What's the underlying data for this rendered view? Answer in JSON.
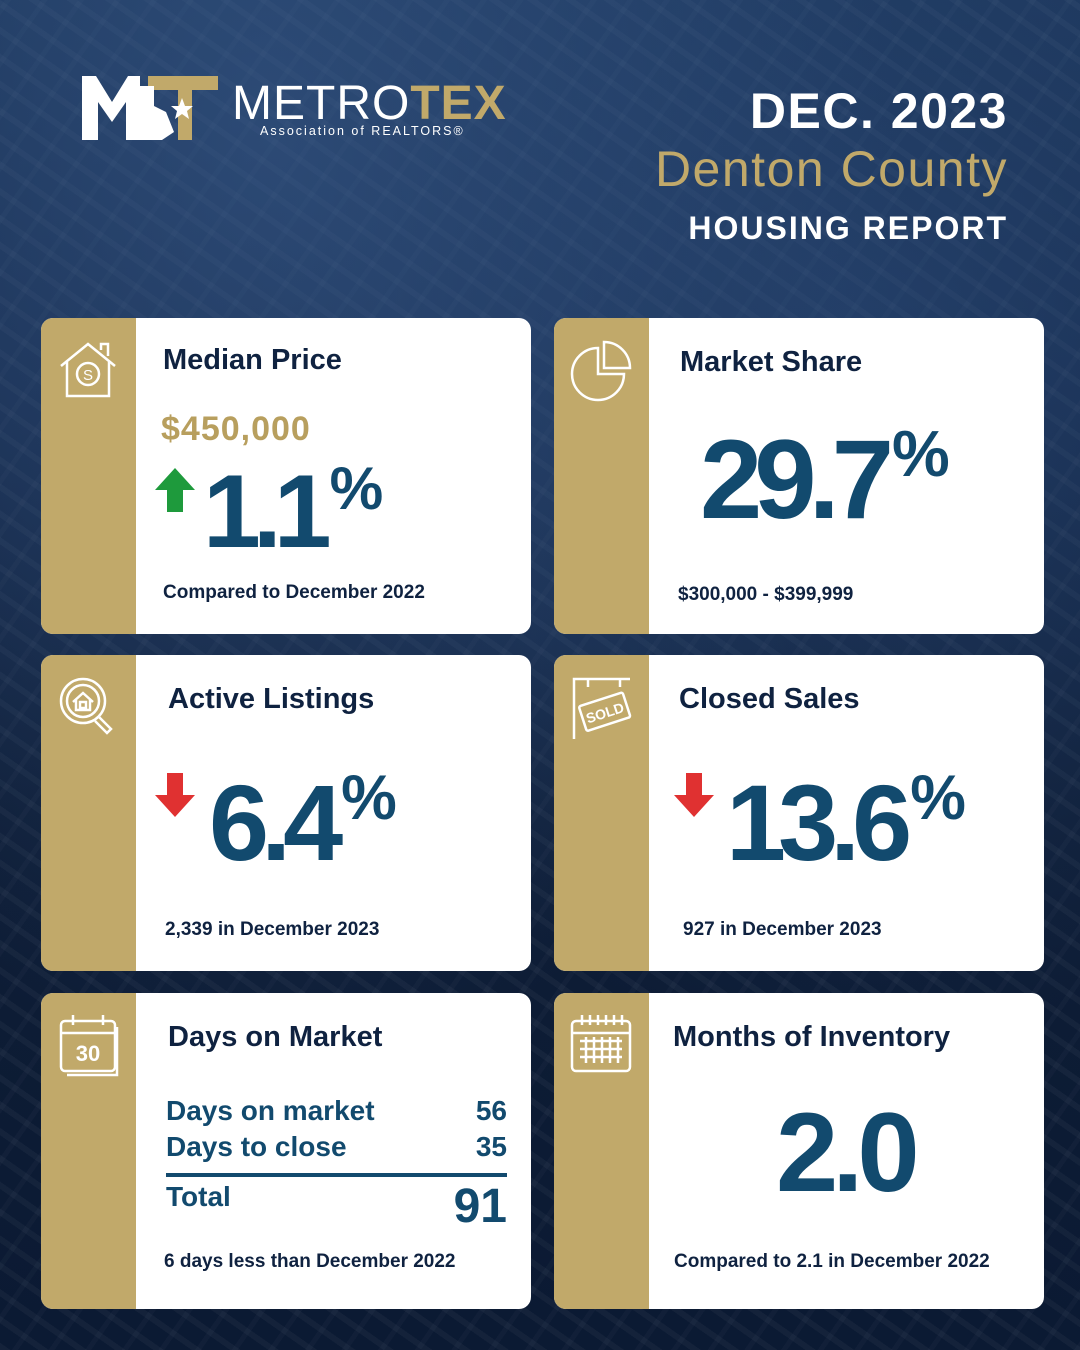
{
  "header": {
    "brand_prefix": "METRO",
    "brand_suffix": "TEX",
    "brand_sub": "Association of REALTORS®",
    "date": "DEC. 2023",
    "county": "Denton County",
    "report": "HOUSING REPORT"
  },
  "colors": {
    "navy": "#0f2240",
    "teal": "#124a6e",
    "gold": "#c1a96a",
    "up": "#1e9a3c",
    "down": "#e03131"
  },
  "cards": {
    "median_price": {
      "icon": "house-dollar-icon",
      "title": "Median Price",
      "price": "$450,000",
      "direction": "up",
      "change_value": "1.1",
      "change_unit": "%",
      "note": "Compared to December 2022"
    },
    "market_share": {
      "icon": "pie-chart-icon",
      "title": "Market Share",
      "value": "29.7",
      "unit": "%",
      "note": "$300,000 - $399,999"
    },
    "active_listings": {
      "icon": "house-search-icon",
      "title": "Active Listings",
      "direction": "down",
      "change_value": "6.4",
      "change_unit": "%",
      "note": "2,339 in December 2023"
    },
    "closed_sales": {
      "icon": "sold-sign-icon",
      "title": "Closed Sales",
      "sign_text": "SOLD",
      "direction": "down",
      "change_value": "13.6",
      "change_unit": "%",
      "note": "927 in December 2023"
    },
    "days_on_market": {
      "icon": "calendar-30-icon",
      "icon_text": "30",
      "title": "Days on Market",
      "rows": [
        {
          "label": "Days on market",
          "value": "56"
        },
        {
          "label": "Days to close",
          "value": "35"
        }
      ],
      "total_label": "Total",
      "total_value": "91",
      "note": "6 days less than December 2022"
    },
    "months_inventory": {
      "icon": "calendar-grid-icon",
      "title": "Months of Inventory",
      "value": "2.0",
      "note": "Compared to 2.1 in December 2022"
    }
  }
}
